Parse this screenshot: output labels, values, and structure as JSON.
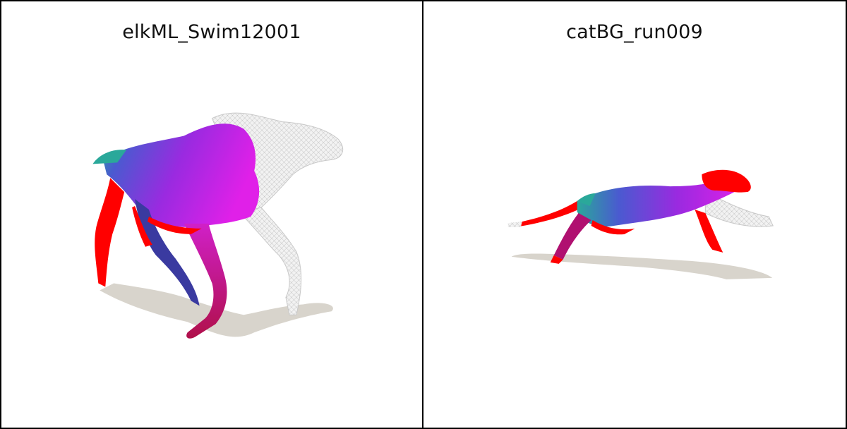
{
  "panels": [
    {
      "title": "elkML_Swim12001"
    },
    {
      "title": "catBG_run009"
    }
  ],
  "colors": {
    "background": "#ffffff",
    "shadow": "#d8d4cc",
    "mesh_grey": "#e6e6e6",
    "red": "#ff0000",
    "magenta": "#e020e8",
    "blue": "#4a5ad0",
    "teal": "#2aa89a"
  }
}
